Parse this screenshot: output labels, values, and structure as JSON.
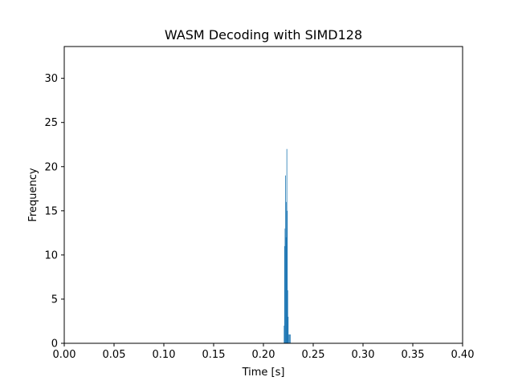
{
  "chart_data": {
    "type": "bar",
    "title": "WASM Decoding with SIMD128",
    "xlabel": "Time [s]",
    "ylabel": "Frequency",
    "xlim": [
      0.0,
      0.4
    ],
    "ylim": [
      0,
      33.6
    ],
    "xticks": [
      "0.00",
      "0.05",
      "0.10",
      "0.15",
      "0.20",
      "0.25",
      "0.30",
      "0.35",
      "0.40"
    ],
    "yticks": [
      "0",
      "5",
      "10",
      "15",
      "20",
      "25",
      "30"
    ],
    "grid": false,
    "bar_color": "#1f77b4",
    "bin_width": 0.00045,
    "bins": [
      {
        "x": 0.2205,
        "value": 2
      },
      {
        "x": 0.22095,
        "value": 11
      },
      {
        "x": 0.2214,
        "value": 13
      },
      {
        "x": 0.22185,
        "value": 19
      },
      {
        "x": 0.2223,
        "value": 12
      },
      {
        "x": 0.22275,
        "value": 16
      },
      {
        "x": 0.2232,
        "value": 22
      },
      {
        "x": 0.22365,
        "value": 15
      },
      {
        "x": 0.2241,
        "value": 6
      },
      {
        "x": 0.22455,
        "value": 3
      },
      {
        "x": 0.225,
        "value": 1
      },
      {
        "x": 0.2259,
        "value": 1
      },
      {
        "x": 0.2268,
        "value": 1
      }
    ]
  }
}
